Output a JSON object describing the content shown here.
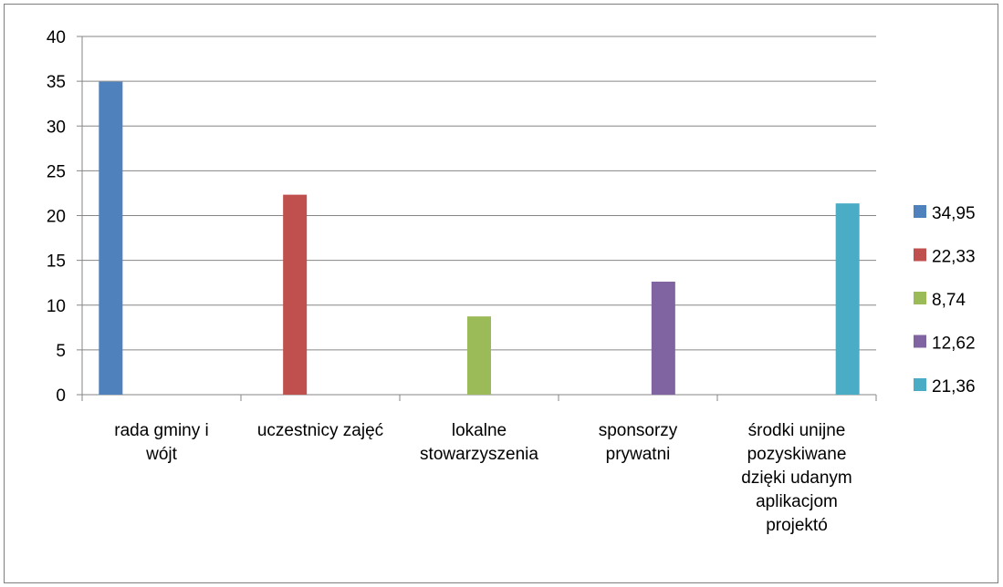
{
  "chart_data": {
    "type": "bar",
    "categories": [
      [
        "rada gminy i",
        "wójt"
      ],
      [
        "uczestnicy zajęć"
      ],
      [
        "lokalne",
        "stowarzyszenia"
      ],
      [
        "sponsorzy",
        "prywatni"
      ],
      [
        "środki unijne",
        "pozyskiwane",
        "dzięki udanym",
        "aplikacjom",
        "projektó"
      ]
    ],
    "values": [
      34.95,
      22.33,
      8.74,
      12.62,
      21.36
    ],
    "legend": [
      "34,95",
      "22,33",
      "8,74",
      "12,62",
      "21,36"
    ],
    "colors": [
      "#4f81bd",
      "#c0504d",
      "#9bbb59",
      "#8064a2",
      "#4bacc6"
    ],
    "yticks": [
      "0",
      "5",
      "10",
      "15",
      "20",
      "25",
      "30",
      "35",
      "40"
    ],
    "ylim": [
      0,
      40
    ],
    "grid": true,
    "legend_position": "right",
    "title": "",
    "xlabel": "",
    "ylabel": ""
  }
}
